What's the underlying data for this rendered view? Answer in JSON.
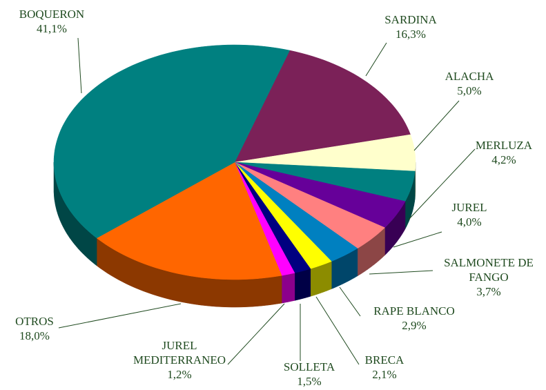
{
  "chart_data": {
    "type": "pie3d",
    "categories": [
      "SARDINA",
      "ALACHA",
      "MERLUZA",
      "JUREL",
      "SALMONETE DE FANGO",
      "RAPE BLANCO",
      "BRECA",
      "SOLLETA",
      "JUREL MEDITERRANEO",
      "OTROS",
      "BOQUERON"
    ],
    "values": [
      16.3,
      5.0,
      4.2,
      4.0,
      3.7,
      2.9,
      2.1,
      1.5,
      1.2,
      18.0,
      41.1
    ],
    "value_labels": [
      "16,3%",
      "5,0%",
      "4,2%",
      "4,0%",
      "3,7%",
      "2,9%",
      "2,1%",
      "1,5%",
      "1,2%",
      "18,0%",
      "41,1%"
    ],
    "colors": [
      "#7b2158",
      "#ffffcc",
      "#008080",
      "#660099",
      "#ff8080",
      "#0080c0",
      "#ffff00",
      "#000080",
      "#ff00ff",
      "#ff6600",
      "#008080"
    ]
  }
}
